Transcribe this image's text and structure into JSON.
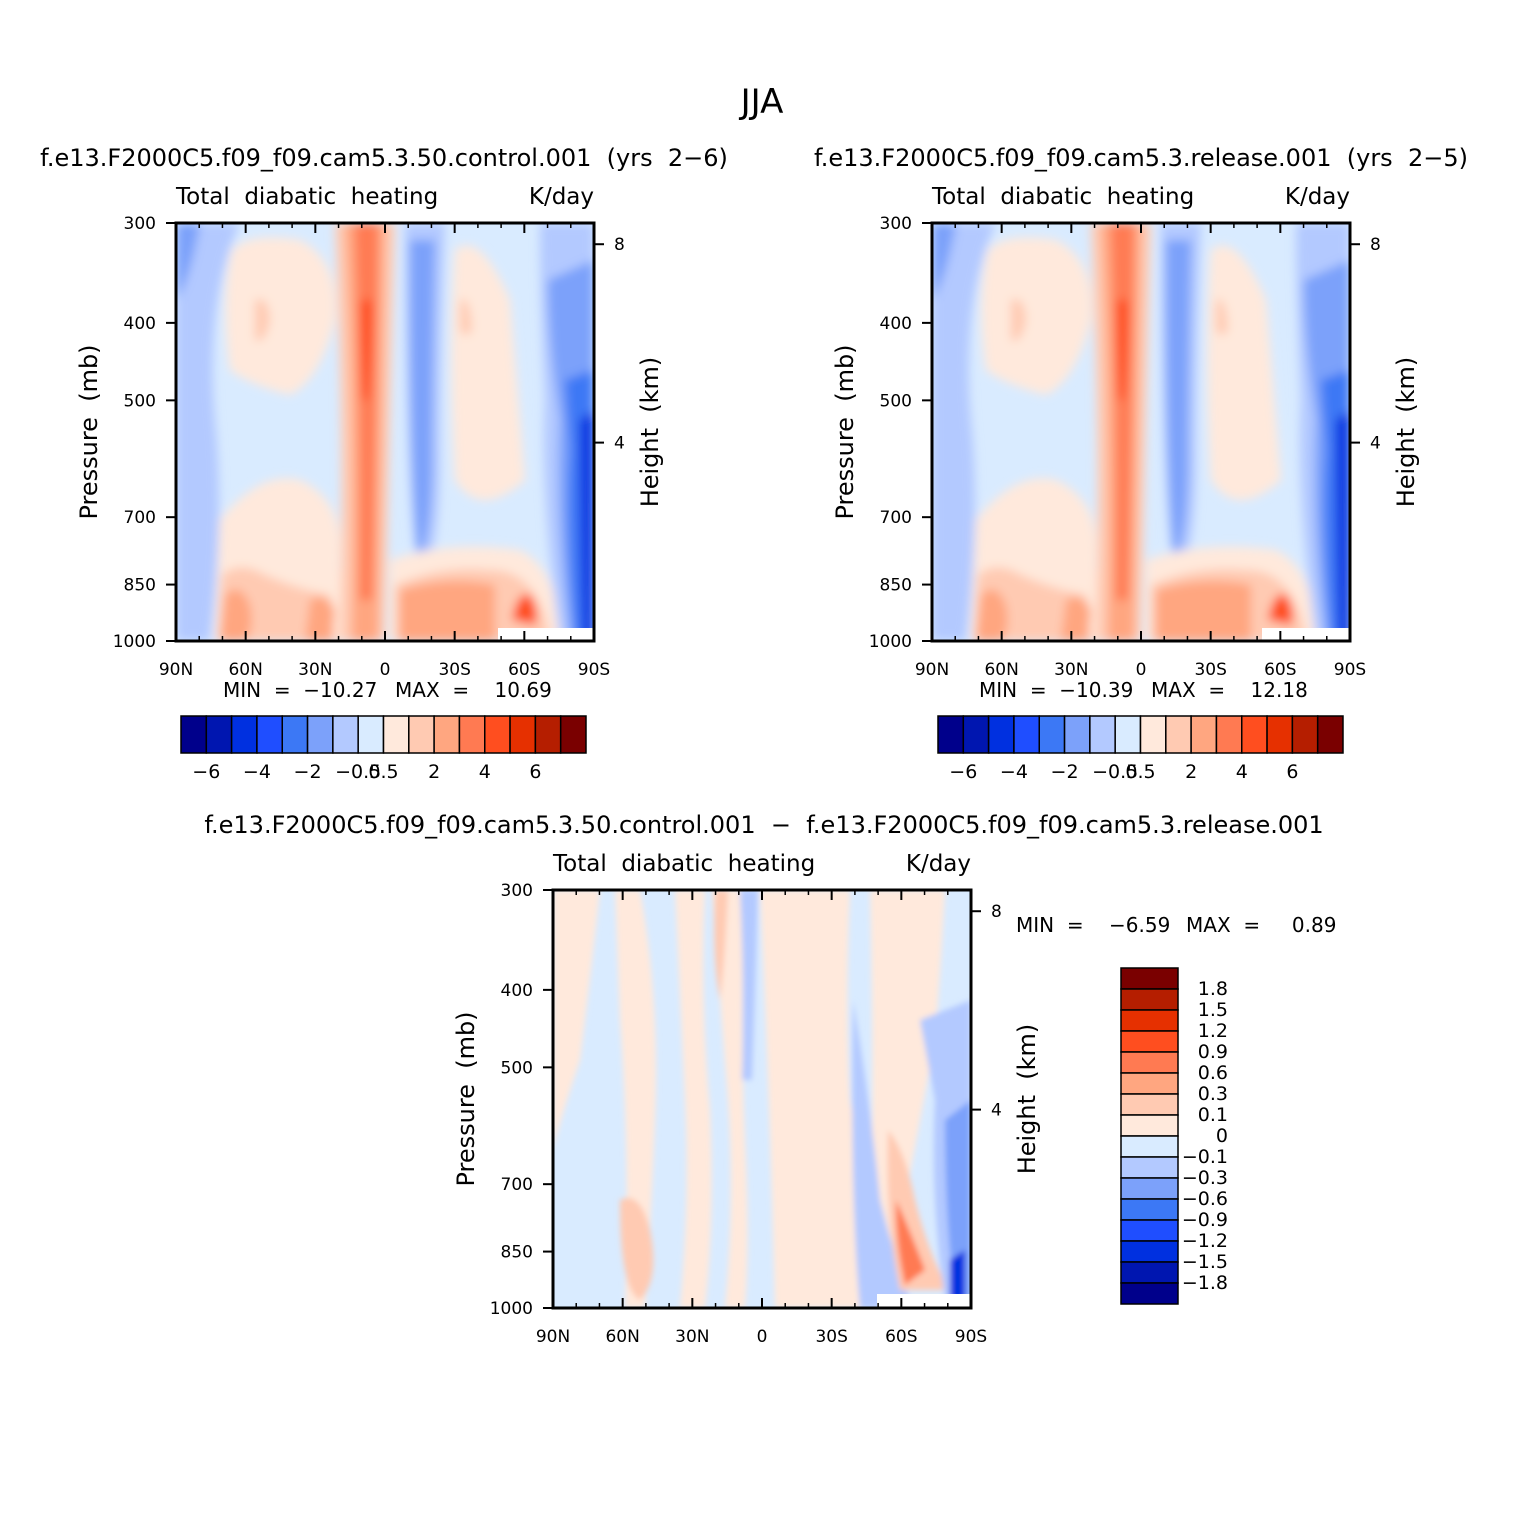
{
  "figure": {
    "title": "JJA"
  },
  "chart_data": [
    {
      "type": "contour",
      "case_title": "f.e13.F2000C5.f09_f09.cam5.3.50.control.001  (yrs  2−6)",
      "left_label": "Total  diabatic  heating",
      "right_label": "K/day",
      "ylabel": "Pressure  (mb)",
      "ylabel2": "Height  (km)",
      "x_ticks": [
        "90N",
        "60N",
        "30N",
        "0",
        "30S",
        "60S",
        "90S"
      ],
      "y_ticks": [
        "300",
        "400",
        "500",
        "700",
        "850",
        "1000"
      ],
      "y2_ticks": [
        "8",
        "4"
      ],
      "min_label": "MIN  =  −10.27",
      "max_label": "MAX  =    10.69",
      "min": -10.27,
      "max": 10.69,
      "colorbar_labels": [
        "−6",
        "−4",
        "−2",
        "−0.5",
        "0.5",
        "2",
        "4",
        "6"
      ],
      "colorbar_colors": [
        "#00008b",
        "#0016b0",
        "#0030e0",
        "#1f4eff",
        "#3c78f5",
        "#7ca1fa",
        "#b3c9ff",
        "#d9ebff",
        "#ffe9dc",
        "#ffcab2",
        "#ffa680",
        "#ff7a52",
        "#ff4e1f",
        "#e63000",
        "#b51e00",
        "#7a0000"
      ]
    },
    {
      "type": "contour",
      "case_title": "f.e13.F2000C5.f09_f09.cam5.3.release.001  (yrs  2−5)",
      "left_label": "Total  diabatic  heating",
      "right_label": "K/day",
      "ylabel": "Pressure  (mb)",
      "ylabel2": "Height  (km)",
      "x_ticks": [
        "90N",
        "60N",
        "30N",
        "0",
        "30S",
        "60S",
        "90S"
      ],
      "y_ticks": [
        "300",
        "400",
        "500",
        "700",
        "850",
        "1000"
      ],
      "y2_ticks": [
        "8",
        "4"
      ],
      "min_label": "MIN  =  −10.39",
      "max_label": "MAX  =    12.18",
      "min": -10.39,
      "max": 12.18,
      "colorbar_labels": [
        "−6",
        "−4",
        "−2",
        "−0.5",
        "0.5",
        "2",
        "4",
        "6"
      ],
      "colorbar_colors": [
        "#00008b",
        "#0016b0",
        "#0030e0",
        "#1f4eff",
        "#3c78f5",
        "#7ca1fa",
        "#b3c9ff",
        "#d9ebff",
        "#ffe9dc",
        "#ffcab2",
        "#ffa680",
        "#ff7a52",
        "#ff4e1f",
        "#e63000",
        "#b51e00",
        "#7a0000"
      ]
    },
    {
      "type": "contour",
      "case_title": "f.e13.F2000C5.f09_f09.cam5.3.50.control.001  −  f.e13.F2000C5.f09_f09.cam5.3.release.001",
      "left_label": "Total  diabatic  heating",
      "right_label": "K/day",
      "ylabel": "Pressure  (mb)",
      "ylabel2": "Height  (km)",
      "x_ticks": [
        "90N",
        "60N",
        "30N",
        "0",
        "30S",
        "60S",
        "90S"
      ],
      "y_ticks": [
        "300",
        "400",
        "500",
        "700",
        "850",
        "1000"
      ],
      "y2_ticks": [
        "8",
        "4"
      ],
      "min_label": "MIN  =    −6.59",
      "max_label": "MAX  =     0.89",
      "min": -6.59,
      "max": 0.89,
      "colorbar_labels": [
        "1.8",
        "1.5",
        "1.2",
        "0.9",
        "0.6",
        "0.3",
        "0.1",
        "0",
        "−0.1",
        "−0.3",
        "−0.6",
        "−0.9",
        "−1.2",
        "−1.5",
        "−1.8"
      ],
      "colorbar_colors": [
        "#7a0000",
        "#b51e00",
        "#e63000",
        "#ff4e1f",
        "#ff7a52",
        "#ffa680",
        "#ffcab2",
        "#ffe9dc",
        "#d9ebff",
        "#b3c9ff",
        "#7ca1fa",
        "#3c78f5",
        "#1f4eff",
        "#0030e0",
        "#0016b0",
        "#00008b"
      ]
    }
  ]
}
